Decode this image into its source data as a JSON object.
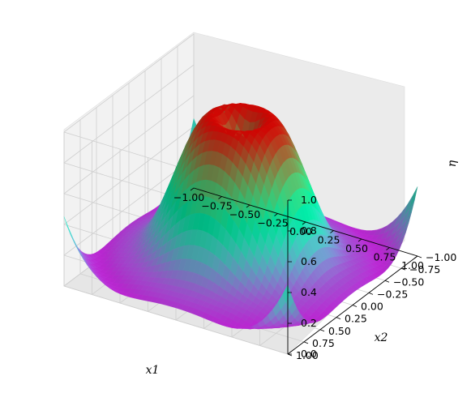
{
  "chart_data": {
    "type": "surface3d",
    "colormap": "rainbow",
    "xlabel": "x1",
    "ylabel": "x2",
    "zlabel": "η",
    "xlim": [
      -1,
      1
    ],
    "ylim": [
      -1,
      1
    ],
    "zlim": [
      0,
      1
    ],
    "grid": true,
    "x_ticks": [
      "−1.00",
      "−0.75",
      "−0.50",
      "−0.25",
      "0.00",
      "0.25",
      "0.50",
      "0.75",
      "1.00"
    ],
    "y_ticks": [
      "−1.00",
      "−0.75",
      "−0.50",
      "−0.25",
      "0.00",
      "0.25",
      "0.50",
      "0.75",
      "1.00"
    ],
    "z_ticks": [
      "0.0",
      "0.2",
      "0.4",
      "0.6",
      "0.8",
      "1.0"
    ],
    "surface": {
      "description": "radially symmetric bump with a crater at the top and a slight rise at the corners",
      "peak_ring_radius": 0.22,
      "peak_height": 1.0,
      "center_height": 0.85,
      "floor_height": 0.0,
      "corner_height": 0.45
    }
  }
}
